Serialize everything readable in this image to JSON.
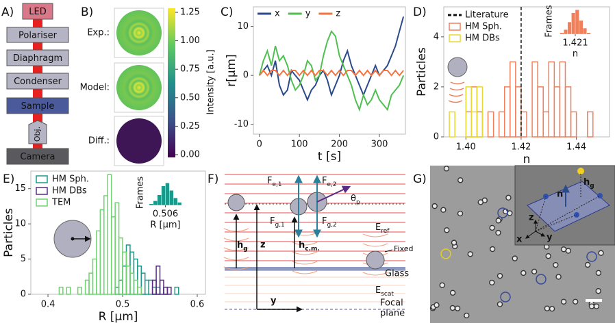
{
  "panel_labels": [
    "A)",
    "B)",
    "C)",
    "D)",
    "E)",
    "F)",
    "G)"
  ],
  "panel_a": {
    "components": [
      "LED",
      "Polariser",
      "Diaphragm",
      "Condenser",
      "Sample",
      "Obj.",
      "Camera"
    ]
  },
  "panel_b": {
    "rows": [
      "Exp.:",
      "Model:",
      "Diff.:"
    ],
    "colorbar_label": "Intensity [a.u.]",
    "colorbar_ticks": [
      "0.00",
      "0.25",
      "0.50",
      "0.75",
      "1.00",
      "1.25"
    ]
  },
  "panel_f": {
    "fe1": {
      "base": "F",
      "sub": "e,1"
    },
    "fe2": {
      "base": "F",
      "sub": "e,2"
    },
    "theta": {
      "base": "θ",
      "sub": "p"
    },
    "fg1": {
      "base": "F",
      "sub": "g,1"
    },
    "fg2": {
      "base": "F",
      "sub": "g,2"
    },
    "eref": {
      "base": "E",
      "sub": "ref"
    },
    "hg": {
      "base": "h",
      "sub": "g"
    },
    "z": "z",
    "hcm": {
      "base": "h",
      "sub": "c.m."
    },
    "fixed": "Fixed",
    "glass": "Glass",
    "escat": {
      "base": "E",
      "sub": "scat"
    },
    "y": "y",
    "focal_plane": [
      "Focal",
      "plane"
    ]
  },
  "panel_g": {
    "hg": {
      "base": "h",
      "sub": "g"
    },
    "n": "n",
    "z": "z",
    "x": "x",
    "y": "y"
  },
  "chart_data": [
    {
      "type": "line",
      "xlabel": "t [s]",
      "ylabel": "r[μm]",
      "x": [
        0,
        10,
        20,
        30,
        40,
        50,
        60,
        70,
        80,
        90,
        100,
        110,
        120,
        130,
        140,
        150,
        160,
        170,
        180,
        190,
        200,
        210,
        220,
        230,
        240,
        250,
        260,
        270,
        280,
        290,
        300,
        310,
        320,
        330,
        340,
        350,
        360
      ],
      "series": [
        {
          "name": "x",
          "color": "#2b4a8c",
          "values": [
            0,
            1,
            2,
            0,
            3,
            -2,
            -4,
            -3,
            1,
            0,
            -1,
            -3,
            -5,
            -3,
            -2,
            0,
            1,
            -1,
            -4,
            -2,
            0,
            3,
            5,
            2,
            0,
            -2,
            -4,
            -2,
            0,
            2,
            0,
            1,
            2,
            4,
            6,
            9,
            12
          ]
        },
        {
          "name": "y",
          "color": "#4fbf4f",
          "values": [
            0,
            3,
            5,
            2,
            6,
            3,
            4,
            2,
            -1,
            -3,
            -2,
            0,
            3,
            2,
            -1,
            0,
            4,
            7,
            9,
            8,
            4,
            2,
            0,
            -2,
            -5,
            -7,
            -4,
            -6,
            -5,
            -3,
            -5,
            -6,
            -7,
            -4,
            -3,
            -2,
            0
          ]
        },
        {
          "name": "z",
          "color": "#f5733f",
          "values": [
            0,
            1,
            0,
            1,
            1,
            0,
            1,
            0,
            1,
            1,
            0,
            1,
            0,
            1,
            0,
            1,
            1,
            0,
            1,
            0,
            1,
            0,
            1,
            1,
            0,
            1,
            0,
            1,
            0,
            1,
            0,
            1,
            1,
            0,
            1,
            0,
            1
          ]
        }
      ],
      "xlim": [
        -15,
        365
      ],
      "ylim": [
        -12,
        14
      ],
      "xticks": [
        0,
        100,
        200,
        300
      ],
      "yticks": [
        -10,
        0,
        10
      ],
      "legend": "upper left"
    },
    {
      "type": "histogram",
      "xlabel": "n",
      "ylabel": "Particles",
      "bins": [
        1.394,
        1.396,
        1.398,
        1.4,
        1.402,
        1.404,
        1.406,
        1.408,
        1.41,
        1.412,
        1.414,
        1.416,
        1.418,
        1.42,
        1.422,
        1.424,
        1.426,
        1.428,
        1.43,
        1.432,
        1.434,
        1.436,
        1.438,
        1.44,
        1.442,
        1.444,
        1.446,
        1.448
      ],
      "series": [
        {
          "name": "HM Sph.",
          "color": "#f07f5a",
          "values": [
            0,
            0,
            0,
            1,
            2,
            1,
            0,
            1,
            0,
            1,
            2,
            3,
            2,
            1,
            0,
            3,
            2,
            1,
            3,
            2,
            3,
            2,
            1,
            0,
            0,
            1,
            0
          ]
        },
        {
          "name": "HM DBs",
          "color": "#e8d830",
          "values": [
            1,
            0,
            0,
            2,
            1,
            2,
            0,
            0,
            0,
            0,
            0,
            0,
            0,
            0,
            0,
            0,
            0,
            0,
            0,
            0,
            0,
            0,
            0,
            0,
            0,
            0,
            0
          ]
        }
      ],
      "vlines": [
        {
          "name": "Literature",
          "value": 1.42,
          "color": "#111111"
        }
      ],
      "xlim": [
        1.392,
        1.452
      ],
      "ylim": [
        0,
        5.2
      ],
      "xticks": [
        {
          "value": 1.4,
          "label": "1.40"
        },
        1.42,
        1.44
      ],
      "yticks": [
        0,
        2,
        4
      ],
      "legend": "upper left",
      "inset": {
        "type": "histogram",
        "ylabel": "Frames",
        "xlabel": "n",
        "bins": [
          1.417,
          1.418,
          1.419,
          1.42,
          1.421,
          1.422,
          1.423,
          1.424,
          1.425
        ],
        "series": [
          {
            "color": "#f07f5a",
            "values": [
              1,
              3,
              8,
              14,
              16,
              9,
              4,
              1
            ]
          }
        ],
        "xlim": [
          1.416,
          1.426
        ],
        "ylim": [
          0,
          17
        ],
        "xticks": [
          1.421
        ]
      }
    },
    {
      "type": "histogram",
      "xlabel": "R [μm]",
      "ylabel": "Particles",
      "bins": [
        0.415,
        0.42,
        0.425,
        0.43,
        0.435,
        0.44,
        0.445,
        0.45,
        0.455,
        0.46,
        0.465,
        0.47,
        0.475,
        0.48,
        0.485,
        0.49,
        0.495,
        0.5,
        0.505,
        0.51,
        0.515,
        0.52,
        0.525,
        0.53,
        0.535,
        0.54,
        0.545,
        0.55,
        0.555,
        0.56,
        0.565,
        0.57,
        0.575
      ],
      "series": [
        {
          "name": "HM Sph.",
          "color": "#1a9a8a",
          "values": [
            0,
            0,
            0,
            0,
            0,
            0,
            0,
            0,
            0,
            0,
            0,
            0,
            0,
            0,
            0,
            1,
            2,
            4,
            7,
            6,
            5,
            4,
            3,
            2,
            2,
            1,
            1,
            0,
            1,
            0,
            0,
            1
          ]
        },
        {
          "name": "HM DBs",
          "color": "#5b2a86",
          "values": [
            0,
            0,
            0,
            0,
            0,
            0,
            0,
            0,
            0,
            0,
            0,
            0,
            0,
            0,
            0,
            0,
            0,
            0,
            0,
            0,
            0,
            0,
            0,
            0,
            0,
            2,
            4,
            2,
            1,
            1,
            0,
            0
          ]
        },
        {
          "name": "TEM",
          "color": "#6fd36f",
          "values": [
            1,
            0,
            1,
            0,
            0,
            1,
            0,
            2,
            3,
            5,
            9,
            12,
            14,
            17,
            11,
            13,
            8,
            6,
            4,
            3,
            2,
            1,
            0,
            0,
            0,
            0,
            0,
            0,
            0,
            0,
            0,
            0
          ]
        }
      ],
      "xlim": [
        0.377,
        0.611
      ],
      "ylim": [
        0,
        17.5
      ],
      "xticks": [
        0.4,
        0.5,
        0.6
      ],
      "yticks": [
        0,
        5,
        10,
        15
      ],
      "legend": "upper left",
      "inset": {
        "type": "histogram",
        "ylabel": "Frames",
        "xlabel": "R [μm]",
        "bins": [
          0.498,
          0.5,
          0.502,
          0.504,
          0.506,
          0.508,
          0.51,
          0.512,
          0.514
        ],
        "series": [
          {
            "color": "#1a9a8a",
            "values": [
              1,
              3,
              7,
              13,
              15,
              10,
              5,
              2
            ]
          }
        ],
        "xlim": [
          0.497,
          0.515
        ],
        "ylim": [
          0,
          17
        ],
        "xticks": [
          0.506
        ]
      }
    }
  ]
}
